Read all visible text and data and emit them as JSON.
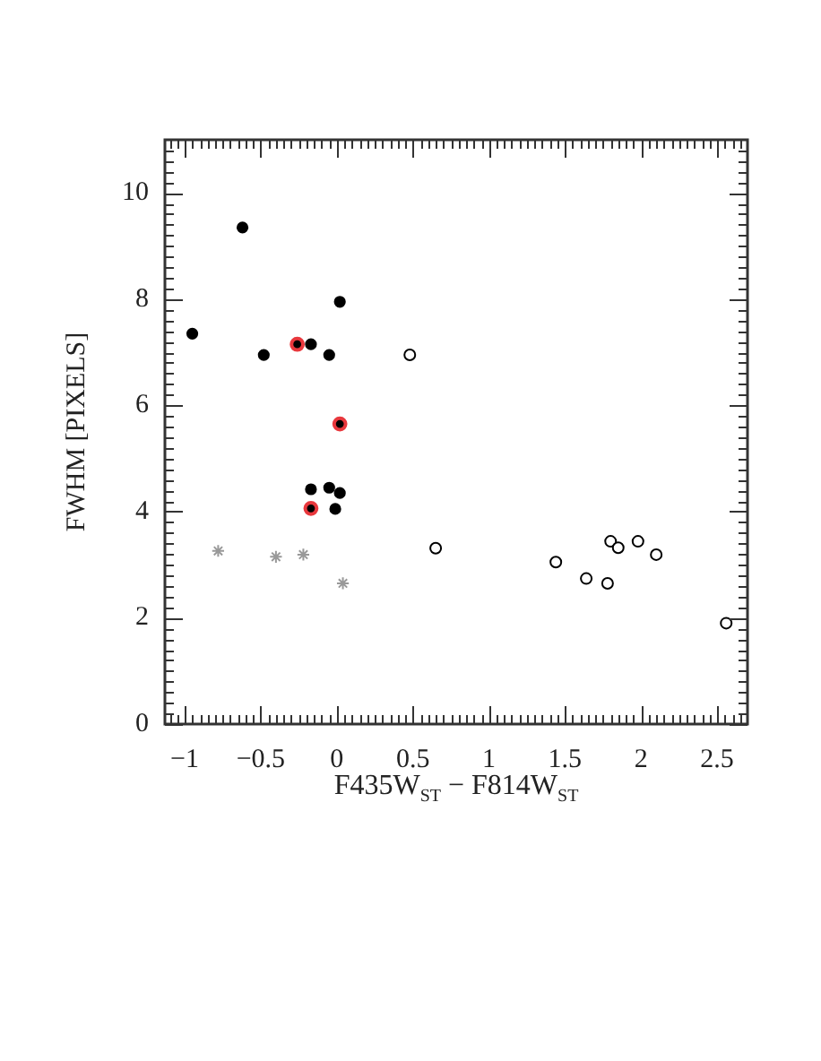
{
  "chart_data": {
    "type": "scatter",
    "xlabel": "F435W$_{ST}$ − F814W$_{ST}$",
    "ylabel": "FWHM [PIXELS]",
    "xlim": [
      -1.13,
      2.7
    ],
    "ylim": [
      0,
      11
    ],
    "xticks": [
      {
        "value": -1.1,
        "label": null
      },
      {
        "value": -1.05,
        "label": null
      },
      {
        "value": -1,
        "label": "−1"
      },
      {
        "value": -0.95,
        "label": null
      },
      {
        "value": -0.9,
        "label": null
      },
      {
        "value": -0.85,
        "label": null
      },
      {
        "value": -0.8,
        "label": null
      },
      {
        "value": -0.75,
        "label": null
      },
      {
        "value": -0.7,
        "label": null
      },
      {
        "value": -0.65,
        "label": null
      },
      {
        "value": -0.6,
        "label": null
      },
      {
        "value": -0.55,
        "label": null
      },
      {
        "value": -0.5,
        "label": "−0.5"
      },
      {
        "value": -0.45,
        "label": null
      },
      {
        "value": -0.4,
        "label": null
      },
      {
        "value": -0.35,
        "label": null
      },
      {
        "value": -0.3,
        "label": null
      },
      {
        "value": -0.25,
        "label": null
      },
      {
        "value": -0.2,
        "label": null
      },
      {
        "value": -0.15,
        "label": null
      },
      {
        "value": -0.1,
        "label": null
      },
      {
        "value": -0.05,
        "label": null
      },
      0,
      {
        "value": 0.05,
        "label": null
      },
      {
        "value": 0.1,
        "label": null
      },
      {
        "value": 0.15,
        "label": null
      },
      {
        "value": 0.2,
        "label": null
      },
      {
        "value": 0.25,
        "label": null
      },
      {
        "value": 0.3,
        "label": null
      },
      {
        "value": 0.35,
        "label": null
      },
      {
        "value": 0.4,
        "label": null
      },
      {
        "value": 0.45,
        "label": null
      },
      0.5,
      {
        "value": 0.55,
        "label": null
      },
      {
        "value": 0.6,
        "label": null
      },
      {
        "value": 0.65,
        "label": null
      },
      {
        "value": 0.7,
        "label": null
      },
      {
        "value": 0.75,
        "label": null
      },
      {
        "value": 0.8,
        "label": null
      },
      {
        "value": 0.85,
        "label": null
      },
      {
        "value": 0.9,
        "label": null
      },
      {
        "value": 0.95,
        "label": null
      },
      1,
      {
        "value": 1.05,
        "label": null
      },
      {
        "value": 1.1,
        "label": null
      },
      {
        "value": 1.15,
        "label": null
      },
      {
        "value": 1.2,
        "label": null
      },
      {
        "value": 1.25,
        "label": null
      },
      {
        "value": 1.3,
        "label": null
      },
      {
        "value": 1.35,
        "label": null
      },
      {
        "value": 1.4,
        "label": null
      },
      {
        "value": 1.45,
        "label": null
      },
      1.5,
      {
        "value": 1.55,
        "label": null
      },
      {
        "value": 1.6,
        "label": null
      },
      {
        "value": 1.65,
        "label": null
      },
      {
        "value": 1.7,
        "label": null
      },
      {
        "value": 1.75,
        "label": null
      },
      {
        "value": 1.8,
        "label": null
      },
      {
        "value": 1.85,
        "label": null
      },
      {
        "value": 1.9,
        "label": null
      },
      {
        "value": 1.95,
        "label": null
      },
      2,
      {
        "value": 2.05,
        "label": null
      },
      {
        "value": 2.1,
        "label": null
      },
      {
        "value": 2.15,
        "label": null
      },
      {
        "value": 2.2,
        "label": null
      },
      {
        "value": 2.25,
        "label": null
      },
      {
        "value": 2.3,
        "label": null
      },
      {
        "value": 2.35,
        "label": null
      },
      {
        "value": 2.4,
        "label": null
      },
      {
        "value": 2.45,
        "label": null
      },
      2.5,
      {
        "value": 2.55,
        "label": null
      },
      {
        "value": 2.6,
        "label": null
      },
      {
        "value": 2.65,
        "label": null
      }
    ],
    "yticks": [
      0,
      {
        "value": 0.2,
        "label": null
      },
      {
        "value": 0.4,
        "label": null
      },
      {
        "value": 0.6,
        "label": null
      },
      {
        "value": 0.8,
        "label": null
      },
      {
        "value": 1,
        "label": null
      },
      {
        "value": 1.2,
        "label": null
      },
      {
        "value": 1.4,
        "label": null
      },
      {
        "value": 1.6,
        "label": null
      },
      {
        "value": 1.8,
        "label": null
      },
      2,
      {
        "value": 2.2,
        "label": null
      },
      {
        "value": 2.4,
        "label": null
      },
      {
        "value": 2.6,
        "label": null
      },
      {
        "value": 2.8,
        "label": null
      },
      {
        "value": 3,
        "label": null
      },
      {
        "value": 3.2,
        "label": null
      },
      {
        "value": 3.4,
        "label": null
      },
      {
        "value": 3.6,
        "label": null
      },
      {
        "value": 3.8,
        "label": null
      },
      4,
      {
        "value": 4.2,
        "label": null
      },
      {
        "value": 4.4,
        "label": null
      },
      {
        "value": 4.6,
        "label": null
      },
      {
        "value": 4.8,
        "label": null
      },
      {
        "value": 5,
        "label": null
      },
      {
        "value": 5.2,
        "label": null
      },
      {
        "value": 5.4,
        "label": null
      },
      {
        "value": 5.6,
        "label": null
      },
      {
        "value": 5.8,
        "label": null
      },
      6,
      {
        "value": 6.2,
        "label": null
      },
      {
        "value": 6.4,
        "label": null
      },
      {
        "value": 6.6,
        "label": null
      },
      {
        "value": 6.8,
        "label": null
      },
      {
        "value": 7,
        "label": null
      },
      {
        "value": 7.2,
        "label": null
      },
      {
        "value": 7.4,
        "label": null
      },
      {
        "value": 7.6,
        "label": null
      },
      {
        "value": 7.8,
        "label": null
      },
      8,
      {
        "value": 8.2,
        "label": null
      },
      {
        "value": 8.4,
        "label": null
      },
      {
        "value": 8.6,
        "label": null
      },
      {
        "value": 8.8,
        "label": null
      },
      {
        "value": 9,
        "label": null
      },
      {
        "value": 9.2,
        "label": null
      },
      {
        "value": 9.4,
        "label": null
      },
      {
        "value": 9.6,
        "label": null
      },
      {
        "value": 9.8,
        "label": null
      },
      10,
      {
        "value": 10.2,
        "label": null
      },
      {
        "value": 10.4,
        "label": null
      },
      {
        "value": 10.6,
        "label": null
      },
      {
        "value": 10.8,
        "label": null
      }
    ],
    "series": [
      {
        "color": "#000000",
        "marker": "circle",
        "x": [
          -0.62,
          0.02,
          -0.95,
          -0.17,
          -0.48,
          -0.05,
          -0.17,
          -0.05,
          0.02,
          -0.01
        ],
        "values": [
          9.35,
          7.95,
          7.35,
          7.15,
          6.95,
          6.95,
          4.42,
          4.45,
          4.35,
          4.05
        ]
      },
      {
        "color": "#e8383d",
        "marker": "circle",
        "x": [
          -0.26,
          0.02,
          -0.17
        ],
        "values": [
          7.15,
          5.65,
          4.06
        ]
      },
      {
        "color": "#000000",
        "marker": "circle",
        "x": [
          0.48,
          0.65,
          1.44,
          1.64,
          1.78,
          1.8,
          1.85,
          1.98,
          2.1,
          2.56
        ],
        "values": [
          6.95,
          3.31,
          3.05,
          2.74,
          2.65,
          3.44,
          3.32,
          3.44,
          3.19,
          1.9
        ]
      },
      {
        "color": "#999999",
        "marker": "cross",
        "x": [
          -0.78,
          -0.4,
          -0.22,
          0.04
        ],
        "values": [
          3.26,
          3.15,
          3.19,
          2.65
        ]
      }
    ]
  }
}
